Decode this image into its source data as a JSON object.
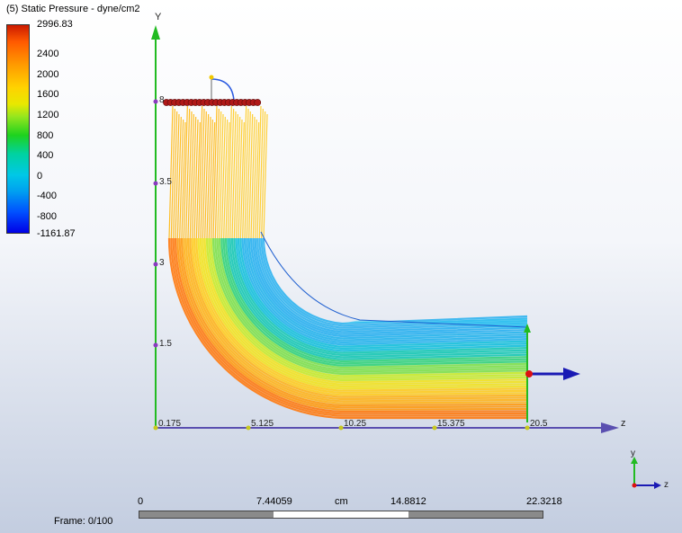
{
  "legend": {
    "title": "(5) Static Pressure - dyne/cm2",
    "ticks": [
      "2996.83",
      "2400",
      "2000",
      "1600",
      "1200",
      "800",
      "400",
      "0",
      "-400",
      "-800",
      "-1161.87"
    ]
  },
  "axes": {
    "y_label": "Y",
    "z_label": "z",
    "y_ticks": [
      "8",
      "3.5",
      "3",
      "1.5"
    ],
    "z_ticks": [
      "0.175",
      "5.125",
      "10.25",
      "15.375",
      "20.5"
    ]
  },
  "triad": {
    "y": "y",
    "z": "z"
  },
  "scale": {
    "values": [
      "0",
      "7.44059",
      "14.8812",
      "22.3218"
    ],
    "unit": "cm"
  },
  "frame": {
    "label": "Frame: 0/100"
  }
}
